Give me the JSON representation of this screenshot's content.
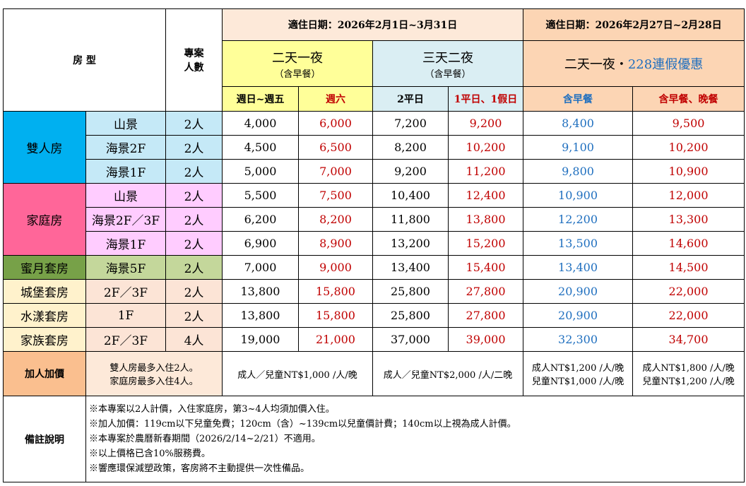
{
  "header": {
    "room_type": "房 型",
    "people": "專案\n人數",
    "period1": "適住日期：2026年2月1日~3月31日",
    "period2": "適住日期：2026年2月27日~2月28日",
    "plan1": {
      "name": "二天一夜",
      "note": "（含早餐）"
    },
    "plan2": {
      "name": "三天二夜",
      "note": "（含早餐）"
    },
    "plan3": {
      "name": "二天一夜・",
      "highlight": "228連假優惠"
    },
    "columns": [
      "週日~週五",
      "週六",
      "2平日",
      "1平日、1假日",
      "含早餐",
      "含早餐、晚餐"
    ]
  },
  "groups": [
    {
      "name": "雙人房",
      "rooms": [
        {
          "view": "山景",
          "people": "2人",
          "prices": [
            "4,000",
            "6,000",
            "7,200",
            "9,200",
            "8,400",
            "9,500"
          ]
        },
        {
          "view": "海景2F",
          "people": "2人",
          "prices": [
            "4,500",
            "6,500",
            "8,200",
            "10,200",
            "9,100",
            "10,200"
          ]
        },
        {
          "view": "海景1F",
          "people": "2人",
          "prices": [
            "5,000",
            "7,000",
            "9,200",
            "11,200",
            "9,800",
            "10,900"
          ]
        }
      ]
    },
    {
      "name": "家庭房",
      "rooms": [
        {
          "view": "山景",
          "people": "2人",
          "prices": [
            "5,500",
            "7,500",
            "10,400",
            "12,400",
            "10,900",
            "12,000"
          ]
        },
        {
          "view": "海景2F／3F",
          "people": "2人",
          "prices": [
            "6,200",
            "8,200",
            "11,800",
            "13,800",
            "12,200",
            "13,300"
          ]
        },
        {
          "view": "海景1F",
          "people": "2人",
          "prices": [
            "6,900",
            "8,900",
            "13,200",
            "15,200",
            "13,500",
            "14,600"
          ]
        }
      ]
    },
    {
      "name": "蜜月套房",
      "rooms": [
        {
          "view": "海景5F",
          "people": "2人",
          "prices": [
            "7,000",
            "9,000",
            "13,400",
            "15,400",
            "13,400",
            "14,500"
          ]
        }
      ]
    },
    {
      "name": "城堡套房",
      "rooms": [
        {
          "view": "2F／3F",
          "people": "2人",
          "prices": [
            "13,800",
            "15,800",
            "25,800",
            "27,800",
            "20,900",
            "22,000"
          ]
        }
      ]
    },
    {
      "name": "水漾套房",
      "rooms": [
        {
          "view": "1F",
          "people": "2人",
          "prices": [
            "13,800",
            "15,800",
            "25,800",
            "27,800",
            "20,900",
            "22,000"
          ]
        }
      ]
    },
    {
      "name": "家族套房",
      "rooms": [
        {
          "view": "2F／3F",
          "people": "4人",
          "prices": [
            "19,000",
            "21,000",
            "37,000",
            "39,000",
            "32,300",
            "34,700"
          ]
        }
      ]
    }
  ],
  "extra": {
    "label": "加人加價",
    "limit": "雙人房最多入住2人。\n家庭房最多入住4人。",
    "prices": [
      "成人／兒童NT$1,000 /人/晚",
      "成人／兒童NT$2,000 /人/二晚",
      "成人NT$1,200 /人/晚\n兒童NT$1,000 /人/晚",
      "成人NT$1,800 /人/晚\n兒童NT$1,200 /人/晚"
    ]
  },
  "notes": {
    "label": "備註說明",
    "lines": [
      "※本專案以2人計價，入住家庭房，第3~4人均須加價入住。",
      "※加人加價：119cm以下兒童免費；120cm（含）~139cm以兒童價計費；140cm以上視為成人計價。",
      "※本專案於農曆新春期間（2026/2/14~2/21）不適用。",
      "※以上價格已含10%服務費。",
      "※響應環保減塑政策，客房將不主動提供一次性備品。"
    ]
  }
}
